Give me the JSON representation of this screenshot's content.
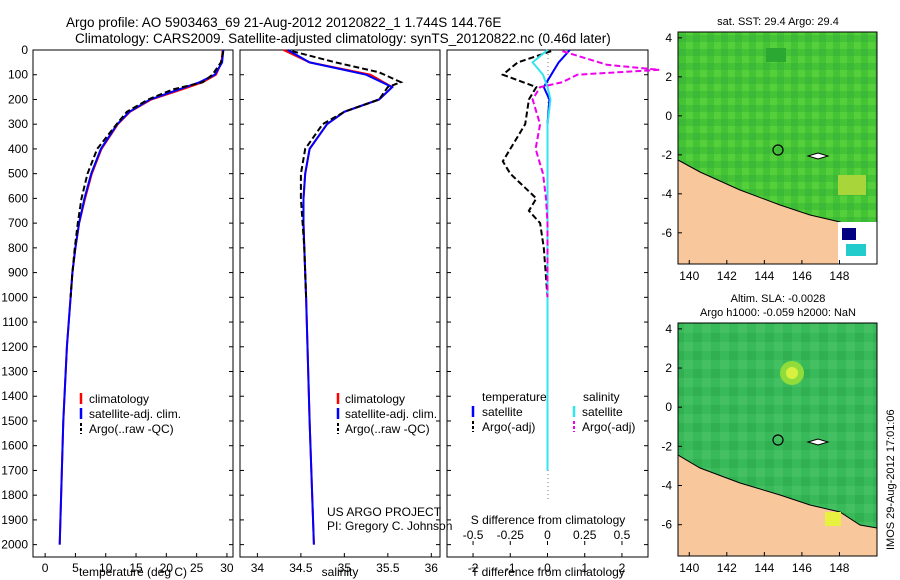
{
  "title_line1": "Argo profile: AO 5903463_69 21-Aug-2012 20120822_1 1.744S 144.76E",
  "title_line2": "Climatology: CARS2009. Satellite-adjusted climatology: synTS_20120822.nc (0.46d later)",
  "colors": {
    "climatology": "#ff0000",
    "satellite": "#0000ff",
    "argo": "#000000",
    "sal_satellite": "#33e5ef",
    "sal_argo": "#ee00ee",
    "land": "#f8c79b",
    "ocean": "#33cc33"
  },
  "depth_axis": {
    "ticks": [
      "0",
      "100",
      "200",
      "300",
      "400",
      "500",
      "600",
      "700",
      "800",
      "900",
      "1000",
      "1100",
      "1200",
      "1300",
      "1400",
      "1500",
      "1600",
      "1700",
      "1800",
      "1900",
      "2000"
    ],
    "range": [
      0,
      2050
    ]
  },
  "panel1": {
    "xlabel": "temperature (deg C)",
    "xticks": [
      "0",
      "5",
      "10",
      "15",
      "20",
      "25",
      "30"
    ],
    "legend": [
      "climatology",
      "satellite-adj. clim.",
      "Argo(..raw -QC)"
    ]
  },
  "panel2": {
    "xlabel": "salinity",
    "xticks": [
      "34",
      "34.5",
      "35",
      "35.5",
      "36"
    ],
    "legend": [
      "climatology",
      "satellite-adj. clim.",
      "Argo(..raw -QC)"
    ],
    "credit1": "US ARGO PROJECT",
    "credit2": "PI: Gregory C. Johnson"
  },
  "panel3": {
    "legend_temp_head": "temperature",
    "legend_sal_head": "salinity",
    "legend_sat": "satellite",
    "legend_adj": "Argo(-adj)",
    "s_label": "S difference from climatology",
    "s_ticks": [
      "-0.5",
      "-0.25",
      "0",
      "0.25",
      "0.5"
    ],
    "t_label": "T difference from climatology",
    "t_ticks": [
      "-2",
      "-1",
      "0",
      "1",
      "2"
    ]
  },
  "map1": {
    "title": "sat. SST: 29.4 Argo: 29.4",
    "yticks": [
      "4",
      "2",
      "0",
      "-2",
      "-4",
      "-6"
    ],
    "xticks": [
      "140",
      "142",
      "144",
      "146",
      "148"
    ]
  },
  "map2": {
    "title1": "Altim. SLA: -0.0028",
    "title2": "Argo h1000: -0.059 h2000: NaN",
    "yticks": [
      "4",
      "2",
      "0",
      "-2",
      "-4",
      "-6"
    ],
    "xticks": [
      "140",
      "142",
      "144",
      "146",
      "148"
    ]
  },
  "imos_stamp": "IMOS 29-Aug-2012 17:01:06",
  "chart_data": [
    {
      "type": "line",
      "xlabel": "temperature (deg C)",
      "ylabel": "",
      "xlim": [
        -2,
        31
      ],
      "ylim": [
        2050,
        0
      ],
      "series": [
        {
          "name": "climatology",
          "depth": [
            0,
            50,
            100,
            130,
            160,
            200,
            250,
            300,
            400,
            500,
            600,
            700,
            800,
            900,
            1000,
            1200,
            1500,
            2000
          ],
          "values": [
            29.3,
            29.1,
            28.2,
            26.0,
            22.5,
            17.5,
            14.0,
            12.0,
            9.3,
            7.7,
            6.6,
            5.6,
            5.0,
            4.5,
            4.2,
            3.6,
            3.0,
            2.4
          ]
        },
        {
          "name": "satellite-adj. clim.",
          "depth": [
            0,
            50,
            100,
            130,
            160,
            200,
            250,
            300,
            400,
            500,
            600,
            700,
            800,
            900,
            1000,
            1200,
            1500,
            2000
          ],
          "values": [
            29.4,
            29.2,
            28.0,
            25.5,
            22.0,
            17.3,
            13.9,
            11.9,
            9.2,
            7.6,
            6.5,
            5.6,
            5.0,
            4.5,
            4.2,
            3.6,
            3.0,
            2.4
          ]
        },
        {
          "name": "Argo(..raw -QC)",
          "depth": [
            5,
            50,
            100,
            130,
            160,
            200,
            250,
            300,
            400,
            500,
            600,
            700,
            800,
            900,
            1000
          ],
          "values": [
            29.4,
            29.0,
            27.6,
            26.0,
            21.0,
            17.0,
            13.5,
            11.8,
            8.6,
            7.0,
            6.0,
            5.4,
            4.9,
            4.5,
            4.2
          ]
        }
      ]
    },
    {
      "type": "line",
      "xlabel": "salinity",
      "ylabel": "",
      "xlim": [
        33.8,
        36.1
      ],
      "ylim": [
        2050,
        0
      ],
      "series": [
        {
          "name": "climatology",
          "depth": [
            0,
            50,
            100,
            150,
            200,
            250,
            300,
            400,
            500,
            600,
            700,
            800,
            1000,
            1500,
            2000
          ],
          "values": [
            34.3,
            34.6,
            35.3,
            35.55,
            35.4,
            35.0,
            34.8,
            34.6,
            34.55,
            34.53,
            34.53,
            34.54,
            34.56,
            34.6,
            34.65
          ]
        },
        {
          "name": "satellite-adj. clim.",
          "depth": [
            0,
            50,
            100,
            150,
            200,
            250,
            300,
            400,
            500,
            600,
            700,
            800,
            1000,
            1500,
            2000
          ],
          "values": [
            34.35,
            34.6,
            35.25,
            35.55,
            35.4,
            35.0,
            34.8,
            34.6,
            34.55,
            34.53,
            34.53,
            34.54,
            34.56,
            34.6,
            34.65
          ]
        },
        {
          "name": "Argo(..raw -QC)",
          "depth": [
            5,
            50,
            90,
            130,
            150,
            200,
            250,
            300,
            400,
            500,
            600,
            700,
            800,
            1000
          ],
          "values": [
            34.4,
            34.9,
            35.4,
            35.65,
            35.5,
            35.4,
            35.0,
            34.75,
            34.55,
            34.5,
            34.5,
            34.52,
            34.54,
            34.56
          ]
        }
      ]
    },
    {
      "type": "line",
      "xlabel": "T difference from climatology",
      "ylabel": "",
      "xlim": [
        -2.7,
        2.7
      ],
      "ylim": [
        2050,
        0
      ],
      "series": [
        {
          "name": "satellite",
          "depth": [
            0,
            50,
            100,
            150,
            200,
            300,
            500,
            1000,
            1700
          ],
          "values": [
            0.6,
            0.3,
            0.1,
            -0.1,
            0.05,
            0.0,
            0.0,
            0.0,
            0.0
          ]
        },
        {
          "name": "Argo(-adj)",
          "depth": [
            5,
            50,
            100,
            150,
            200,
            300,
            400,
            450,
            500,
            600,
            650,
            700,
            800,
            1000
          ],
          "values": [
            0.1,
            -0.8,
            -1.2,
            -0.3,
            -0.5,
            -0.6,
            -1.0,
            -1.2,
            -1.0,
            -0.3,
            -0.5,
            -0.2,
            -0.1,
            0.0
          ]
        },
        {
          "name": "satellite (salinity)",
          "depth": [
            0,
            50,
            100,
            150,
            200,
            300,
            500,
            1000,
            1700
          ],
          "values": [
            0.0,
            -0.1,
            -0.03,
            0.0,
            0.02,
            0.0,
            0.0,
            0.0,
            0.0
          ]
        },
        {
          "name": "Argo(-adj) (salinity)",
          "depth": [
            5,
            60,
            80,
            100,
            130,
            150,
            200,
            300,
            400,
            500,
            600,
            700,
            800,
            1000
          ],
          "values": [
            0.1,
            0.4,
            0.75,
            0.2,
            0.1,
            -0.05,
            -0.1,
            -0.05,
            -0.08,
            -0.03,
            -0.01,
            0.0,
            0.0,
            0.0
          ]
        }
      ]
    }
  ]
}
